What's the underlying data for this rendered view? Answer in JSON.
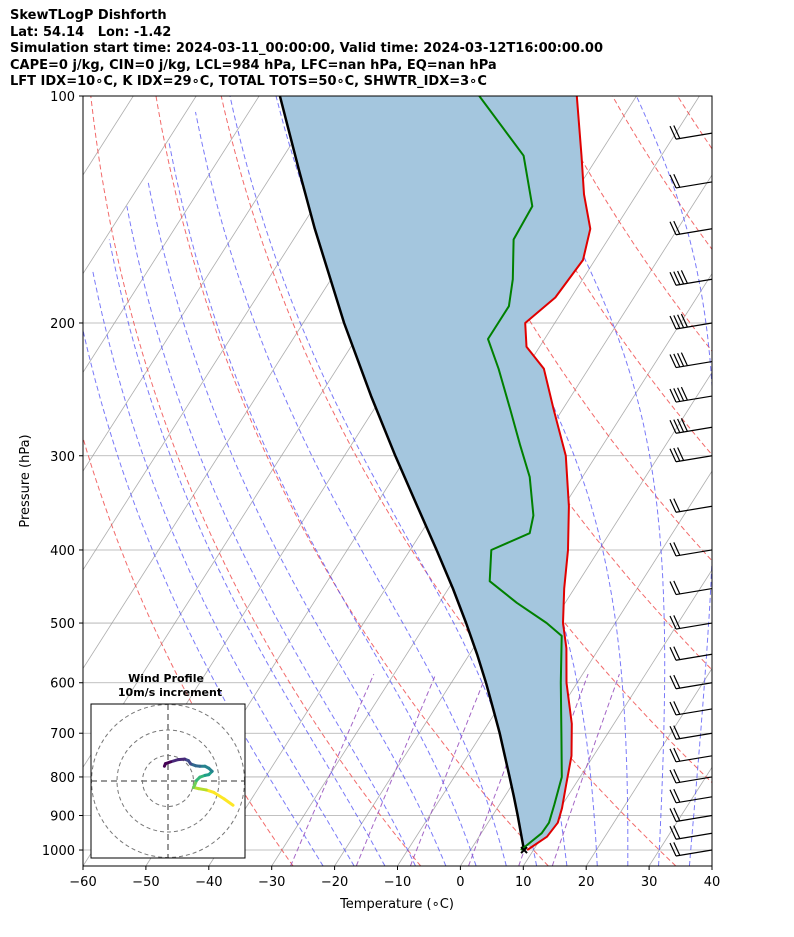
{
  "header": {
    "line1": "SkewTLogP Dishforth",
    "line2": "Lat: 54.14   Lon: -1.42",
    "line3": "Simulation start time: 2024-03-11_00:00:00, Valid time: 2024-03-12T16:00:00.00",
    "line4": "CAPE=0 j/kg, CIN=0 j/kg, LCL=984 hPa, LFC=nan hPa, EQ=nan hPa",
    "line5": "LFT IDX=10∘C, K IDX=29∘C, TOTAL TOTS=50∘C, SHWTR_IDX=3∘C"
  },
  "chart_data": {
    "type": "line",
    "skew_t": {
      "xlabel": "Temperature (∘C)",
      "ylabel": "Pressure (hPa)",
      "xlim": [
        -60,
        40
      ],
      "ylim": [
        1050,
        100
      ],
      "y_log_scale": true,
      "grid": true,
      "x_ticks": [
        "−60",
        "−50",
        "−40",
        "−30",
        "−20",
        "−10",
        "0",
        "10",
        "20",
        "30",
        "40"
      ],
      "x_tick_values": [
        -60,
        -50,
        -40,
        -30,
        -20,
        -10,
        0,
        10,
        20,
        30,
        40
      ],
      "y_ticks": [
        "100",
        "200",
        "300",
        "400",
        "500",
        "600",
        "700",
        "800",
        "900",
        "1000"
      ],
      "y_tick_values": [
        100,
        200,
        300,
        400,
        500,
        600,
        700,
        800,
        900,
        1000
      ],
      "colors": {
        "temperature": "#e00000",
        "dewpoint": "#008000",
        "parcel": "#000000",
        "cape_shade": "#a4c6de",
        "dry_adiabat": "#f05050",
        "moist_adiabat": "#4d4df5",
        "mixing_ratio": "#9a55c0",
        "isotherm": "#999999"
      },
      "series": [
        {
          "name": "temperature",
          "values": [
            {
              "p": 1000,
              "t": 9.0
            },
            {
              "p": 960,
              "t": 10.8
            },
            {
              "p": 920,
              "t": 11.1
            },
            {
              "p": 880,
              "t": 10.3
            },
            {
              "p": 820,
              "t": 8.6
            },
            {
              "p": 750,
              "t": 6.5
            },
            {
              "p": 680,
              "t": 3.3
            },
            {
              "p": 600,
              "t": -1.7
            },
            {
              "p": 540,
              "t": -5.2
            },
            {
              "p": 500,
              "t": -8.3
            },
            {
              "p": 450,
              "t": -11.6
            },
            {
              "p": 400,
              "t": -14.9
            },
            {
              "p": 350,
              "t": -19.2
            },
            {
              "p": 300,
              "t": -24.8
            },
            {
              "p": 260,
              "t": -31.5
            },
            {
              "p": 230,
              "t": -37.1
            },
            {
              "p": 215,
              "t": -42.1
            },
            {
              "p": 200,
              "t": -44.7
            },
            {
              "p": 185,
              "t": -42.5
            },
            {
              "p": 165,
              "t": -41.9
            },
            {
              "p": 150,
              "t": -43.9
            },
            {
              "p": 135,
              "t": -48.4
            },
            {
              "p": 120,
              "t": -52.7
            },
            {
              "p": 100,
              "t": -59.5
            }
          ]
        },
        {
          "name": "dewpoint",
          "values": [
            {
              "p": 1000,
              "t": 8.0
            },
            {
              "p": 950,
              "t": 9.6
            },
            {
              "p": 920,
              "t": 9.7
            },
            {
              "p": 870,
              "t": 8.7
            },
            {
              "p": 800,
              "t": 7.1
            },
            {
              "p": 700,
              "t": 2.6
            },
            {
              "p": 600,
              "t": -2.6
            },
            {
              "p": 520,
              "t": -7.2
            },
            {
              "p": 500,
              "t": -10.9
            },
            {
              "p": 470,
              "t": -17.7
            },
            {
              "p": 440,
              "t": -24.2
            },
            {
              "p": 400,
              "t": -27.1
            },
            {
              "p": 380,
              "t": -22.7
            },
            {
              "p": 360,
              "t": -23.9
            },
            {
              "p": 320,
              "t": -28.4
            },
            {
              "p": 290,
              "t": -33.2
            },
            {
              "p": 260,
              "t": -38.4
            },
            {
              "p": 230,
              "t": -44.3
            },
            {
              "p": 210,
              "t": -49.0
            },
            {
              "p": 190,
              "t": -49.0
            },
            {
              "p": 175,
              "t": -51.1
            },
            {
              "p": 155,
              "t": -55.0
            },
            {
              "p": 140,
              "t": -55.4
            },
            {
              "p": 120,
              "t": -61.9
            },
            {
              "p": 100,
              "t": -75.0
            }
          ]
        },
        {
          "name": "parcel",
          "values": [
            {
              "p": 1000,
              "t": 8.5
            },
            {
              "p": 984,
              "t": 7.8
            },
            {
              "p": 950,
              "t": 6.3
            },
            {
              "p": 900,
              "t": 4.0
            },
            {
              "p": 850,
              "t": 1.5
            },
            {
              "p": 800,
              "t": -1.2
            },
            {
              "p": 750,
              "t": -4.1
            },
            {
              "p": 700,
              "t": -7.2
            },
            {
              "p": 650,
              "t": -10.7
            },
            {
              "p": 600,
              "t": -14.5
            },
            {
              "p": 550,
              "t": -18.8
            },
            {
              "p": 500,
              "t": -23.7
            },
            {
              "p": 450,
              "t": -29.3
            },
            {
              "p": 400,
              "t": -35.8
            },
            {
              "p": 350,
              "t": -43.3
            },
            {
              "p": 300,
              "t": -51.9
            },
            {
              "p": 250,
              "t": -61.8
            },
            {
              "p": 200,
              "t": -73.5
            },
            {
              "p": 150,
              "t": -87.7
            },
            {
              "p": 125,
              "t": -96.3
            },
            {
              "p": 100,
              "t": -106.7
            }
          ]
        }
      ],
      "wind_barbs": [
        {
          "p": 1000,
          "speed_kt": 20
        },
        {
          "p": 950,
          "speed_kt": 20
        },
        {
          "p": 900,
          "speed_kt": 20
        },
        {
          "p": 850,
          "speed_kt": 20
        },
        {
          "p": 800,
          "speed_kt": 20
        },
        {
          "p": 750,
          "speed_kt": 20
        },
        {
          "p": 700,
          "speed_kt": 20
        },
        {
          "p": 650,
          "speed_kt": 20
        },
        {
          "p": 600,
          "speed_kt": 20
        },
        {
          "p": 550,
          "speed_kt": 20
        },
        {
          "p": 500,
          "speed_kt": 20
        },
        {
          "p": 450,
          "speed_kt": 20
        },
        {
          "p": 400,
          "speed_kt": 20
        },
        {
          "p": 350,
          "speed_kt": 20
        },
        {
          "p": 300,
          "speed_kt": 30
        },
        {
          "p": 275,
          "speed_kt": 40
        },
        {
          "p": 250,
          "speed_kt": 40
        },
        {
          "p": 225,
          "speed_kt": 40
        },
        {
          "p": 200,
          "speed_kt": 40
        },
        {
          "p": 175,
          "speed_kt": 40
        },
        {
          "p": 150,
          "speed_kt": 20
        },
        {
          "p": 130,
          "speed_kt": 20
        },
        {
          "p": 112,
          "speed_kt": 20
        }
      ]
    },
    "hodograph": {
      "title": "Wind Profile",
      "subtitle": "10m/s increment",
      "ring_step_ms": 10,
      "rings": 3,
      "colormap": "viridis",
      "points_uv_ms": [
        [
          25.5,
          -9.5
        ],
        [
          22.0,
          -7.0
        ],
        [
          18.0,
          -4.5
        ],
        [
          15.0,
          -3.5
        ],
        [
          12.0,
          -3.0
        ],
        [
          10.0,
          -2.5
        ],
        [
          10.5,
          -1.5
        ],
        [
          11.2,
          0.2
        ],
        [
          12.5,
          1.5
        ],
        [
          14.5,
          2.2
        ],
        [
          16.0,
          2.5
        ],
        [
          17.3,
          3.8
        ],
        [
          16.0,
          5.0
        ],
        [
          14.5,
          5.8
        ],
        [
          12.5,
          5.8
        ],
        [
          10.8,
          6.0
        ],
        [
          8.9,
          6.7
        ],
        [
          8.0,
          8.0
        ],
        [
          6.5,
          8.6
        ],
        [
          4.0,
          8.4
        ],
        [
          1.0,
          7.5
        ],
        [
          -1.0,
          6.8
        ],
        [
          -1.4,
          5.8
        ]
      ]
    }
  }
}
